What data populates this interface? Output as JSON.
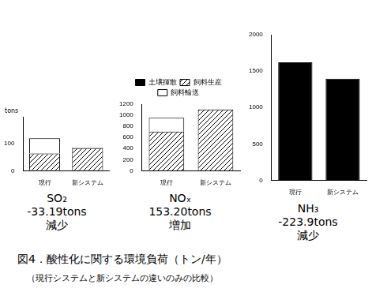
{
  "figure": {
    "title": "図4．酸性化に関する環境負荷（トン/年）",
    "subtitle": "（現行システムと新システムの違いのみの比較）"
  },
  "chart_data": [
    {
      "type": "bar",
      "stacked": true,
      "title": "SO₂",
      "annotations": [
        "-33.19tons",
        "減少"
      ],
      "ylabel": "tons",
      "categories": [
        "現行",
        "新システム"
      ],
      "series": [
        {
          "name": "土壌揮散",
          "color": "#000000",
          "values": [
            2,
            2
          ]
        },
        {
          "name": "飼料生産",
          "color": "#000000",
          "line_style": "hatch",
          "values": [
            62,
            82
          ]
        },
        {
          "name": "飼料輸送",
          "color": "#ffffff",
          "values": [
            56,
            3
          ]
        }
      ],
      "ylim": [
        0,
        200
      ],
      "yticks": [
        0,
        100
      ],
      "grid": false
    },
    {
      "type": "bar",
      "stacked": true,
      "title": "NOₓ",
      "annotations": [
        "153.20tons",
        "増加"
      ],
      "legend": "top",
      "categories": [
        "現行",
        "新システム"
      ],
      "series": [
        {
          "name": "土壌揮散",
          "color": "#000000",
          "values": [
            5,
            5
          ]
        },
        {
          "name": "飼料生産",
          "color": "#000000",
          "line_style": "hatch",
          "values": [
            700,
            1098
          ]
        },
        {
          "name": "飼料輸送",
          "color": "#ffffff",
          "values": [
            250,
            5
          ]
        }
      ],
      "ylim": [
        0,
        1200
      ],
      "yticks": [
        0,
        200,
        400,
        600,
        800,
        1000,
        1200
      ],
      "grid": false
    },
    {
      "type": "bar",
      "stacked": true,
      "title": "NH₃",
      "annotations": [
        "-223.9tons",
        "減少"
      ],
      "categories": [
        "現行",
        "新システム"
      ],
      "series": [
        {
          "name": "土壌揮散",
          "color": "#000000",
          "values": [
            1620,
            1396
          ]
        }
      ],
      "ylim": [
        0,
        2000
      ],
      "yticks": [
        0,
        500,
        1000,
        1500,
        2000
      ],
      "grid": false
    }
  ]
}
